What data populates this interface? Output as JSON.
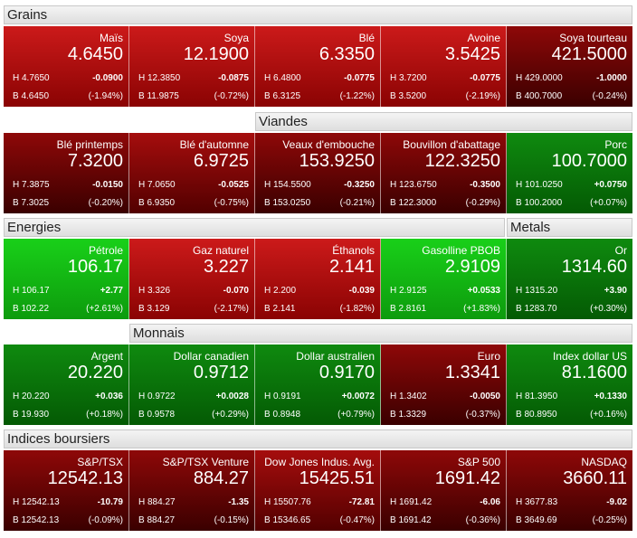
{
  "sections": {
    "grains": "Grains",
    "viandes": "Viandes",
    "energies": "Energies",
    "metals": "Metals",
    "monnais": "Monnais",
    "indices": "Indices boursiers"
  },
  "colors": {
    "red": "#b40f0f",
    "dark_red": "#6a0404",
    "green": "#14c414",
    "dark_green": "#0a700a"
  },
  "rows": {
    "grains": [
      {
        "name": "Maïs",
        "price": "4.6450",
        "high": "H 4.7650",
        "change": "-0.0900",
        "low": "B 4.6450",
        "pct": "(-1.94%)"
      },
      {
        "name": "Soya",
        "price": "12.1900",
        "high": "H 12.3850",
        "change": "-0.0875",
        "low": "B 11.9875",
        "pct": "(-0.72%)"
      },
      {
        "name": "Blé",
        "price": "6.3350",
        "high": "H 6.4800",
        "change": "-0.0775",
        "low": "B 6.3125",
        "pct": "(-1.22%)"
      },
      {
        "name": "Avoine",
        "price": "3.5425",
        "high": "H 3.7200",
        "change": "-0.0775",
        "low": "B 3.5200",
        "pct": "(-2.19%)"
      },
      {
        "name": "Soya tourteau",
        "price": "421.5000",
        "high": "H 429.0000",
        "change": "-1.0000",
        "low": "B 400.7000",
        "pct": "(-0.24%)"
      }
    ],
    "viandes": [
      {
        "name": "Blé printemps",
        "price": "7.3200",
        "high": "H 7.3875",
        "change": "-0.0150",
        "low": "B 7.3025",
        "pct": "(-0.20%)"
      },
      {
        "name": "Blé d'automne",
        "price": "6.9725",
        "high": "H 7.0650",
        "change": "-0.0525",
        "low": "B 6.9350",
        "pct": "(-0.75%)"
      },
      {
        "name": "Veaux d'embouche",
        "price": "153.9250",
        "high": "H 154.5500",
        "change": "-0.3250",
        "low": "B 153.0250",
        "pct": "(-0.21%)"
      },
      {
        "name": "Bouvillon d'abattage",
        "price": "122.3250",
        "high": "H 123.6750",
        "change": "-0.3500",
        "low": "B 122.3000",
        "pct": "(-0.29%)"
      },
      {
        "name": "Porc",
        "price": "100.7000",
        "high": "H 101.0250",
        "change": "+0.0750",
        "low": "B 100.2000",
        "pct": "(+0.07%)"
      }
    ],
    "energies": [
      {
        "name": "Pétrole",
        "price": "106.17",
        "high": "H 106.17",
        "change": "+2.77",
        "low": "B 102.22",
        "pct": "(+2.61%)"
      },
      {
        "name": "Gaz naturel",
        "price": "3.227",
        "high": "H 3.326",
        "change": "-0.070",
        "low": "B 3.129",
        "pct": "(-2.17%)"
      },
      {
        "name": "Éthanols",
        "price": "2.141",
        "high": "H 2.200",
        "change": "-0.039",
        "low": "B 2.141",
        "pct": "(-1.82%)"
      },
      {
        "name": "Gasolline PBOB",
        "price": "2.9109",
        "high": "H 2.9125",
        "change": "+0.0533",
        "low": "B 2.8161",
        "pct": "(+1.83%)"
      },
      {
        "name": "Or",
        "price": "1314.60",
        "high": "H 1315.20",
        "change": "+3.90",
        "low": "B 1283.70",
        "pct": "(+0.30%)"
      }
    ],
    "monnais": [
      {
        "name": "Argent",
        "price": "20.220",
        "high": "H 20.220",
        "change": "+0.036",
        "low": "B 19.930",
        "pct": "(+0.18%)"
      },
      {
        "name": "Dollar canadien",
        "price": "0.9712",
        "high": "H 0.9722",
        "change": "+0.0028",
        "low": "B 0.9578",
        "pct": "(+0.29%)"
      },
      {
        "name": "Dollar australien",
        "price": "0.9170",
        "high": "H 0.9191",
        "change": "+0.0072",
        "low": "B 0.8948",
        "pct": "(+0.79%)"
      },
      {
        "name": "Euro",
        "price": "1.3341",
        "high": "H 1.3402",
        "change": "-0.0050",
        "low": "B 1.3329",
        "pct": "(-0.37%)"
      },
      {
        "name": "Index dollar US",
        "price": "81.1600",
        "high": "H 81.3950",
        "change": "+0.1330",
        "low": "B 80.8950",
        "pct": "(+0.16%)"
      }
    ],
    "indices": [
      {
        "name": "S&P/TSX",
        "price": "12542.13",
        "high": "H 12542.13",
        "change": "-10.79",
        "low": "B 12542.13",
        "pct": "(-0.09%)"
      },
      {
        "name": "S&P/TSX Venture",
        "price": "884.27",
        "high": "H 884.27",
        "change": "-1.35",
        "low": "B 884.27",
        "pct": "(-0.15%)"
      },
      {
        "name": "Dow Jones Indus. Avg.",
        "price": "15425.51",
        "high": "H 15507.76",
        "change": "-72.81",
        "low": "B 15346.65",
        "pct": "(-0.47%)"
      },
      {
        "name": "S&P 500",
        "price": "1691.42",
        "high": "H 1691.42",
        "change": "-6.06",
        "low": "B 1691.42",
        "pct": "(-0.36%)"
      },
      {
        "name": "NASDAQ",
        "price": "3660.11",
        "high": "H 3677.83",
        "change": "-9.02",
        "low": "B 3649.69",
        "pct": "(-0.25%)"
      }
    ]
  }
}
